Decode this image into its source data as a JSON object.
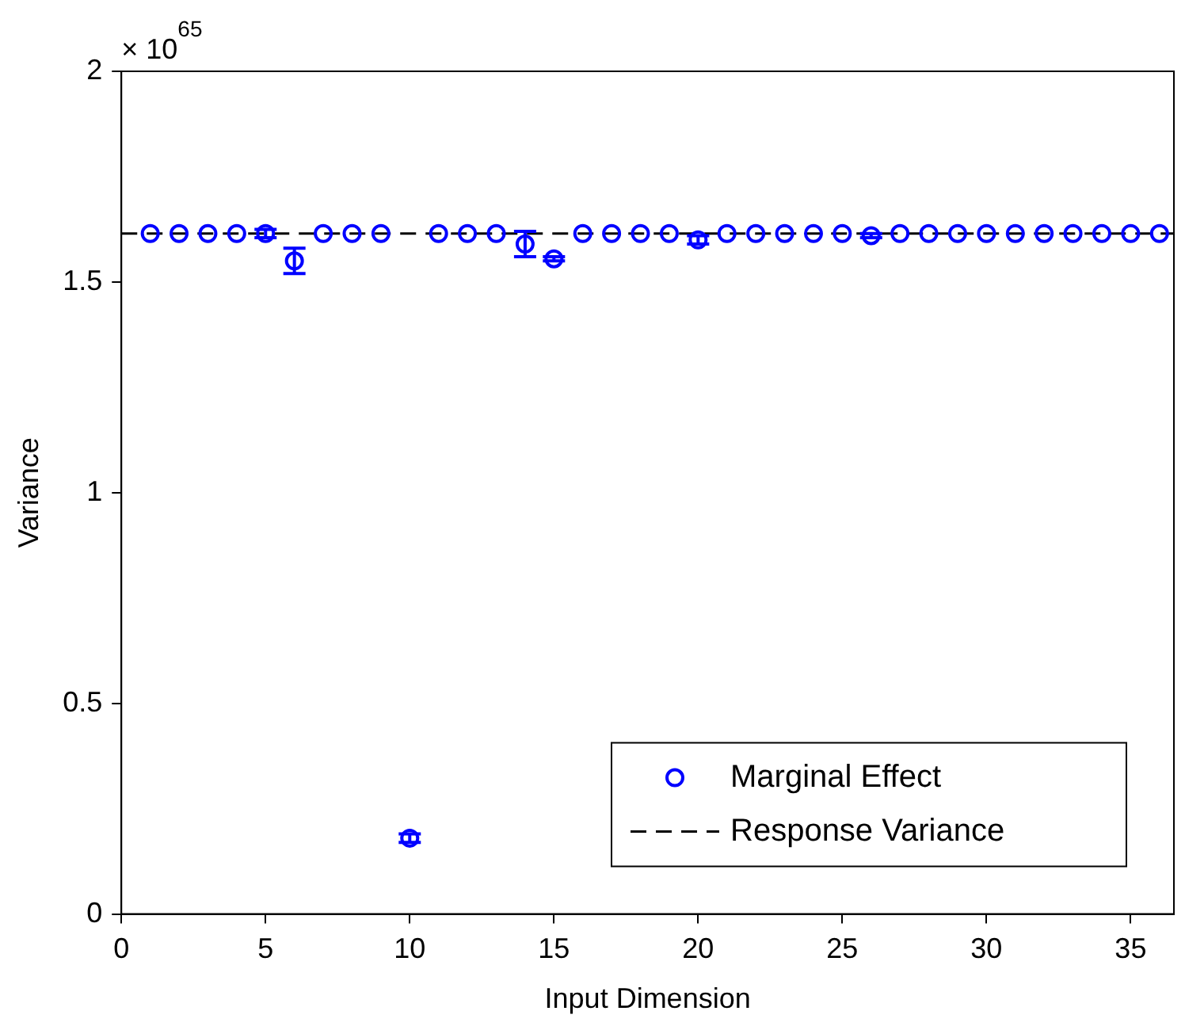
{
  "chart_data": {
    "type": "scatter",
    "xlabel": "Input Dimension",
    "ylabel": "Variance",
    "annotations": [
      "× 10$^{65}$"
    ],
    "xlim": [
      0,
      36.5
    ],
    "xticks": [
      0,
      5,
      10,
      15,
      20,
      25,
      30,
      35
    ],
    "ylim": [
      0,
      2
    ],
    "yticks": [
      0,
      0.5,
      1,
      1.5,
      2
    ],
    "grid": false,
    "legend": "bottom right",
    "series": [
      {
        "name": "Marginal Effect",
        "marker": "circle",
        "color": "#0000ff",
        "x": [
          1,
          2,
          3,
          4,
          5,
          6,
          7,
          8,
          9,
          10,
          11,
          12,
          13,
          14,
          15,
          16,
          17,
          18,
          19,
          20,
          21,
          22,
          23,
          24,
          25,
          26,
          27,
          28,
          29,
          30,
          31,
          32,
          33,
          34,
          35,
          36
        ],
        "values": [
          1.615,
          1.615,
          1.615,
          1.615,
          1.615,
          1.55,
          1.615,
          1.615,
          1.615,
          0.18,
          1.615,
          1.615,
          1.615,
          1.59,
          1.555,
          1.615,
          1.615,
          1.615,
          1.615,
          1.6,
          1.615,
          1.615,
          1.615,
          1.615,
          1.615,
          1.61,
          1.615,
          1.615,
          1.615,
          1.615,
          1.615,
          1.615,
          1.615,
          1.615,
          1.615,
          1.615
        ],
        "errors": [
          null,
          null,
          null,
          null,
          0.01,
          0.03,
          null,
          null,
          null,
          0.01,
          null,
          null,
          null,
          0.03,
          0.005,
          null,
          null,
          null,
          null,
          0.01,
          null,
          null,
          null,
          null,
          null,
          0.005,
          null,
          null,
          null,
          null,
          null,
          null,
          null,
          null,
          null,
          null
        ]
      },
      {
        "name": "Response Variance",
        "type": "line",
        "marker": "none",
        "line_style": "dashed",
        "color": "#000000",
        "x": [
          0,
          36.5
        ],
        "values": [
          1.615,
          1.615
        ]
      }
    ]
  }
}
